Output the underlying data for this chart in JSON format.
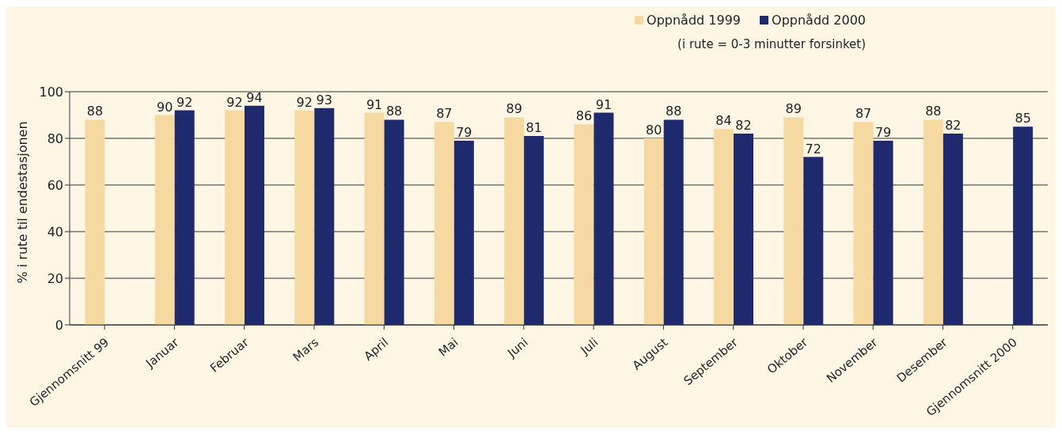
{
  "chart_data": {
    "type": "bar",
    "ylabel": "% i rute til endestasjonen",
    "annotations": [
      "(i rute = 0-3 minutter forsinket)"
    ],
    "categories": [
      "Gjennomsnitt 99",
      "Januar",
      "Februar",
      "Mars",
      "April",
      "Mai",
      "Juni",
      "Juli",
      "August",
      "September",
      "Oktober",
      "November",
      "Desember",
      "Gjennomsnitt 2000"
    ],
    "series": [
      {
        "name": "Oppnådd 1999",
        "color": "#f6d9a0",
        "values": [
          88,
          90,
          92,
          92,
          91,
          87,
          89,
          86,
          80,
          84,
          89,
          87,
          88,
          null
        ]
      },
      {
        "name": "Oppnådd 2000",
        "color": "#1f2a6e",
        "values": [
          null,
          92,
          94,
          93,
          88,
          79,
          81,
          91,
          88,
          82,
          72,
          79,
          82,
          85
        ]
      }
    ],
    "ylim": [
      0,
      100
    ],
    "yticks": [
      0,
      20,
      40,
      60,
      80,
      100
    ],
    "grid": "y",
    "legend": "top right",
    "data_labels": true
  }
}
